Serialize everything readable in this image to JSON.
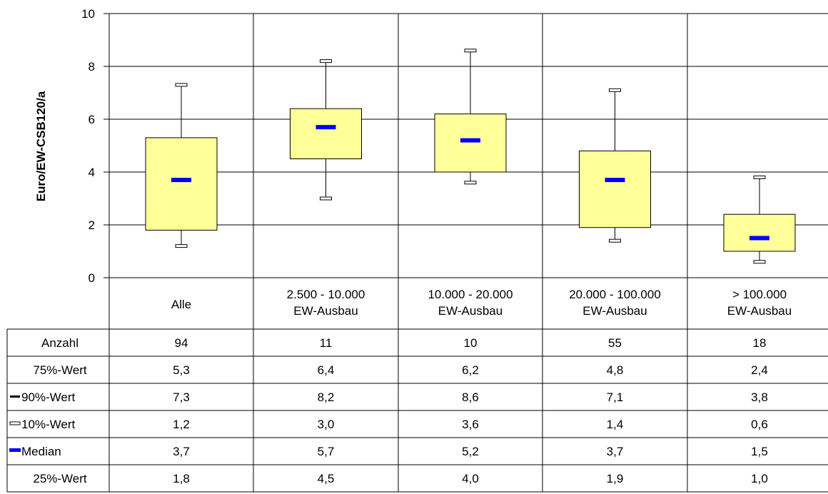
{
  "chart_data": {
    "type": "box",
    "ylabel": "Euro/EW-CSB120/a",
    "ylim": [
      0,
      10
    ],
    "yticks": [
      "0",
      "2",
      "4",
      "6",
      "8",
      "10"
    ],
    "grid": true,
    "categories": [
      [
        "Alle"
      ],
      [
        "2.500 - 10.000",
        "EW-Ausbau"
      ],
      [
        "10.000 - 20.000",
        "EW-Ausbau"
      ],
      [
        "20.000 - 100.000",
        "EW-Ausbau"
      ],
      [
        "> 100.000",
        "EW-Ausbau"
      ]
    ],
    "series": [
      {
        "name": "75%-Wert",
        "values": [
          5.3,
          6.4,
          6.2,
          4.8,
          2.4
        ]
      },
      {
        "name": "90%-Wert",
        "values": [
          7.3,
          8.2,
          8.6,
          7.1,
          3.8
        ]
      },
      {
        "name": "10%-Wert",
        "values": [
          1.2,
          3.0,
          3.6,
          1.4,
          0.6
        ]
      },
      {
        "name": "Median",
        "values": [
          3.7,
          5.7,
          5.2,
          3.7,
          1.5
        ]
      },
      {
        "name": "25%-Wert",
        "values": [
          1.8,
          4.5,
          4.0,
          1.9,
          1.0
        ]
      }
    ],
    "counts": {
      "name": "Anzahl",
      "values": [
        94,
        11,
        10,
        55,
        18
      ]
    },
    "table_rows": [
      {
        "label": "Anzahl",
        "marker": "none",
        "cells": [
          "94",
          "11",
          "10",
          "55",
          "18"
        ]
      },
      {
        "label": "75%-Wert",
        "marker": "none",
        "cells": [
          "5,3",
          "6,4",
          "6,2",
          "4,8",
          "2,4"
        ]
      },
      {
        "label": "90%-Wert",
        "marker": "black-dash",
        "cells": [
          "7,3",
          "8,2",
          "8,6",
          "7,1",
          "3,8"
        ]
      },
      {
        "label": "10%-Wert",
        "marker": "hollow-dash",
        "cells": [
          "1,2",
          "3,0",
          "3,6",
          "1,4",
          "0,6"
        ]
      },
      {
        "label": "Median",
        "marker": "blue-dash",
        "cells": [
          "3,7",
          "5,7",
          "5,2",
          "3,7",
          "1,5"
        ]
      },
      {
        "label": "25%-Wert",
        "marker": "none",
        "cells": [
          "1,8",
          "4,5",
          "4,0",
          "1,9",
          "1,0"
        ]
      }
    ],
    "colors": {
      "box_fill": "#ffff99",
      "median": "#0000ff",
      "line": "#000000",
      "background": "#ffffff"
    }
  }
}
